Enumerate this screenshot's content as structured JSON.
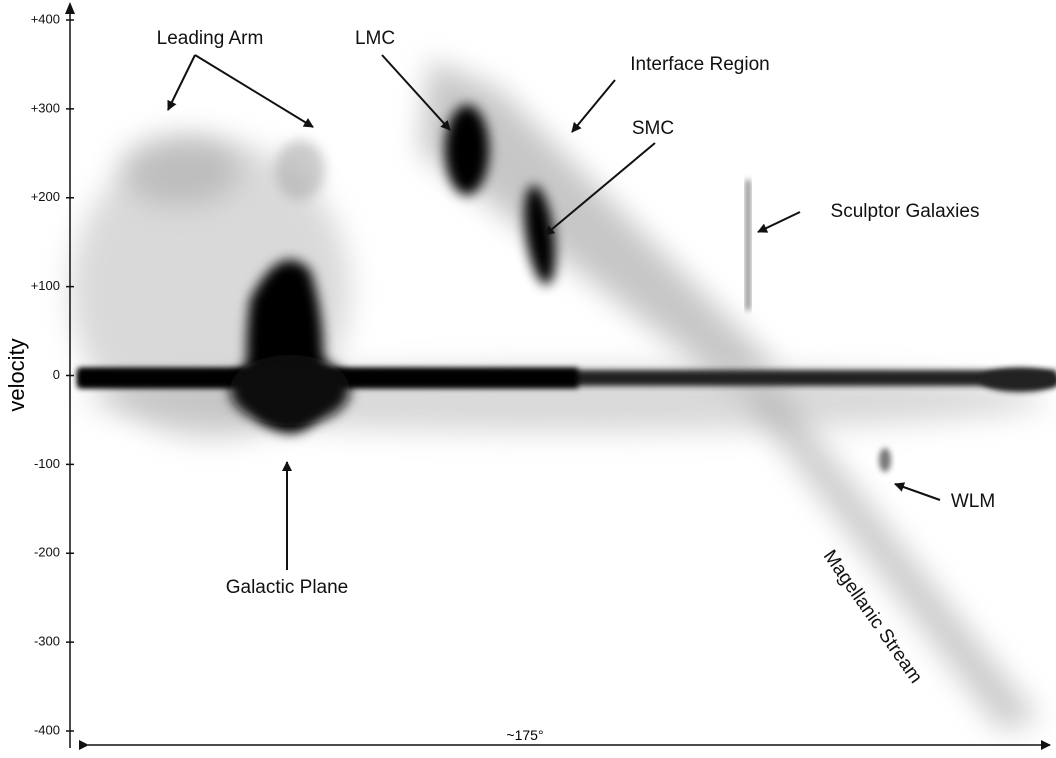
{
  "chart_data": {
    "type": "position-velocity",
    "ylabel": "velocity",
    "xlabel": "~175°",
    "ylim": [
      -400,
      400
    ],
    "yticks": [
      {
        "value": 400,
        "label": "+400"
      },
      {
        "value": 300,
        "label": "+300"
      },
      {
        "value": 200,
        "label": "+200"
      },
      {
        "value": 100,
        "label": "+100"
      },
      0,
      -100,
      -200,
      -300,
      -400
    ],
    "annotations": [
      "Leading Arm",
      "LMC",
      "Interface Region",
      "SMC",
      "Sculptor Galaxies",
      "WLM",
      "Galactic Plane",
      "Magellanic Stream"
    ]
  }
}
